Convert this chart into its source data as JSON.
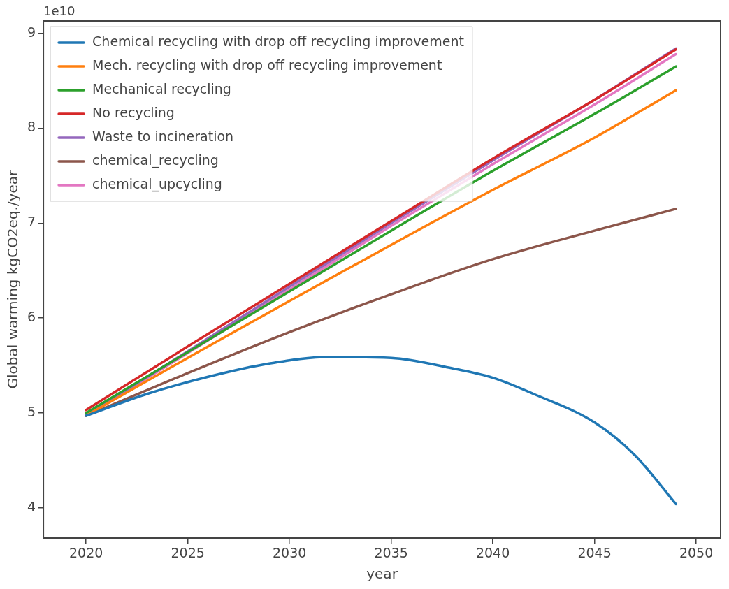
{
  "chart_data": {
    "type": "line",
    "xlabel": "year",
    "ylabel": "Global warming kgCO2eq./year",
    "annotations": [
      "1e10"
    ],
    "xlim": [
      2017.9,
      2051.2
    ],
    "xticks": [
      2020,
      2025,
      2030,
      2035,
      2040,
      2045,
      2050
    ],
    "ylim": [
      3.68,
      9.13
    ],
    "yticks": [
      4,
      5,
      6,
      7,
      8,
      9
    ],
    "grid": false,
    "legend": "top left",
    "marker": "none",
    "line_style": "solid",
    "series": [
      {
        "name": "Chemical recycling with drop off recycling improvement",
        "color": "#1f77b4",
        "x": [
          2020,
          2023,
          2026,
          2029,
          2032,
          2035,
          2038,
          2040,
          2042,
          2045,
          2047,
          2049
        ],
        "values": [
          4.97,
          5.2,
          5.38,
          5.52,
          5.59,
          5.58,
          5.47,
          5.37,
          5.2,
          4.9,
          4.55,
          4.04
        ]
      },
      {
        "name": "Mech. recycling with drop off recycling improvement",
        "color": "#ff7f0e",
        "x": [
          2020,
          2025,
          2030,
          2035,
          2040,
          2045,
          2049
        ],
        "values": [
          4.97,
          5.58,
          6.18,
          6.77,
          7.35,
          7.9,
          8.4
        ]
      },
      {
        "name": "Mechanical recycling",
        "color": "#2ca02c",
        "x": [
          2020,
          2025,
          2030,
          2035,
          2040,
          2045,
          2049
        ],
        "values": [
          5.0,
          5.64,
          6.28,
          6.92,
          7.55,
          8.15,
          8.65
        ]
      },
      {
        "name": "No recycling",
        "color": "#d62728",
        "x": [
          2020,
          2025,
          2030,
          2035,
          2040,
          2045,
          2049
        ],
        "values": [
          5.03,
          5.7,
          6.36,
          7.02,
          7.68,
          8.3,
          8.83
        ]
      },
      {
        "name": "Waste to incineration",
        "color": "#9467bd",
        "x": [
          2020,
          2025,
          2030,
          2035,
          2040,
          2045,
          2049
        ],
        "values": [
          4.97,
          5.65,
          6.33,
          7.0,
          7.66,
          8.3,
          8.84
        ]
      },
      {
        "name": "chemical_recycling",
        "color": "#8c564b",
        "x": [
          2020,
          2025,
          2030,
          2035,
          2040,
          2045,
          2049
        ],
        "values": [
          4.97,
          5.42,
          5.85,
          6.25,
          6.62,
          6.92,
          7.15
        ]
      },
      {
        "name": "chemical_upcycling",
        "color": "#e377c2",
        "x": [
          2020,
          2025,
          2030,
          2035,
          2040,
          2045,
          2049
        ],
        "values": [
          4.97,
          5.63,
          6.3,
          6.97,
          7.62,
          8.25,
          8.78
        ]
      }
    ]
  }
}
